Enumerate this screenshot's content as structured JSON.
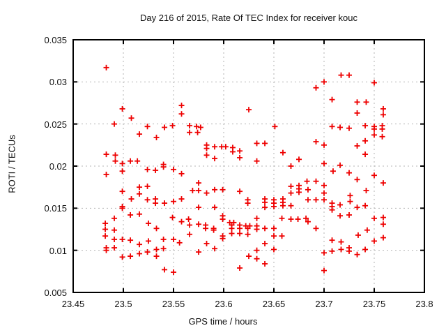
{
  "title": "Day 216 of 2015, Rate Of TEC Index for receiver kouc",
  "colors": {
    "marker": "#ee0000",
    "grid": "#b3b3b3",
    "axis": "#000000",
    "text": "#111111",
    "background": "#ffffff"
  },
  "chart_data": {
    "type": "scatter",
    "title": "Day 216 of 2015, Rate Of TEC Index for receiver kouc",
    "xlabel": "GPS time / hours",
    "ylabel": "ROTI / TECUs",
    "xlim": [
      23.45,
      23.8
    ],
    "ylim": [
      0.005,
      0.035
    ],
    "xticks": [
      23.45,
      23.5,
      23.55,
      23.6,
      23.65,
      23.7,
      23.75,
      23.8
    ],
    "xtick_labels": [
      "23.45",
      "23.5",
      "23.55",
      "23.6",
      "23.65",
      "23.7",
      "23.75",
      "23.8"
    ],
    "yticks": [
      0.005,
      0.01,
      0.015,
      0.02,
      0.025,
      0.03,
      0.035
    ],
    "ytick_labels": [
      "0.005",
      "0.01",
      "0.015",
      "0.02",
      "0.025",
      "0.03",
      "0.035"
    ],
    "grid": true,
    "legend": "none",
    "marker": "plus",
    "series": [
      {
        "name": "ROTI",
        "points": [
          [
            23.483,
            0.0317
          ],
          [
            23.499,
            0.0268
          ],
          [
            23.508,
            0.0257
          ],
          [
            23.558,
            0.0272
          ],
          [
            23.558,
            0.0262
          ],
          [
            23.625,
            0.0267
          ],
          [
            23.717,
            0.0308
          ],
          [
            23.725,
            0.0308
          ],
          [
            23.7,
            0.03
          ],
          [
            23.75,
            0.0299
          ],
          [
            23.692,
            0.0293
          ],
          [
            23.708,
            0.0279
          ],
          [
            23.733,
            0.0276
          ],
          [
            23.742,
            0.0276
          ],
          [
            23.733,
            0.0263
          ],
          [
            23.759,
            0.0268
          ],
          [
            23.759,
            0.0261
          ],
          [
            23.491,
            0.025
          ],
          [
            23.524,
            0.0247
          ],
          [
            23.541,
            0.0246
          ],
          [
            23.549,
            0.0248
          ],
          [
            23.566,
            0.0248
          ],
          [
            23.566,
            0.024
          ],
          [
            23.573,
            0.0247
          ],
          [
            23.577,
            0.0246
          ],
          [
            23.574,
            0.024
          ],
          [
            23.651,
            0.0247
          ],
          [
            23.708,
            0.0247
          ],
          [
            23.716,
            0.0246
          ],
          [
            23.725,
            0.0245
          ],
          [
            23.741,
            0.0248
          ],
          [
            23.75,
            0.0247
          ],
          [
            23.75,
            0.0244
          ],
          [
            23.758,
            0.0248
          ],
          [
            23.758,
            0.0244
          ],
          [
            23.75,
            0.0237
          ],
          [
            23.758,
            0.0235
          ],
          [
            23.516,
            0.0238
          ],
          [
            23.533,
            0.0234
          ],
          [
            23.483,
            0.0214
          ],
          [
            23.492,
            0.0213
          ],
          [
            23.492,
            0.0206
          ],
          [
            23.499,
            0.0203
          ],
          [
            23.507,
            0.0206
          ],
          [
            23.514,
            0.0206
          ],
          [
            23.499,
            0.0194
          ],
          [
            23.483,
            0.019
          ],
          [
            23.524,
            0.0196
          ],
          [
            23.532,
            0.0195
          ],
          [
            23.54,
            0.0202
          ],
          [
            23.54,
            0.0199
          ],
          [
            23.55,
            0.0196
          ],
          [
            23.558,
            0.0191
          ],
          [
            23.516,
            0.0175
          ],
          [
            23.524,
            0.0176
          ],
          [
            23.499,
            0.017
          ],
          [
            23.516,
            0.0167
          ],
          [
            23.508,
            0.0161
          ],
          [
            23.524,
            0.016
          ],
          [
            23.532,
            0.0161
          ],
          [
            23.532,
            0.0156
          ],
          [
            23.541,
            0.0156
          ],
          [
            23.55,
            0.0158
          ],
          [
            23.558,
            0.0161
          ],
          [
            23.499,
            0.0152
          ],
          [
            23.583,
            0.0225
          ],
          [
            23.583,
            0.0221
          ],
          [
            23.591,
            0.0223
          ],
          [
            23.598,
            0.0223
          ],
          [
            23.602,
            0.0223
          ],
          [
            23.609,
            0.0222
          ],
          [
            23.609,
            0.0217
          ],
          [
            23.616,
            0.0218
          ],
          [
            23.616,
            0.021
          ],
          [
            23.583,
            0.0213
          ],
          [
            23.591,
            0.0209
          ],
          [
            23.633,
            0.0227
          ],
          [
            23.641,
            0.0227
          ],
          [
            23.633,
            0.0206
          ],
          [
            23.659,
            0.0216
          ],
          [
            23.675,
            0.0208
          ],
          [
            23.667,
            0.02
          ],
          [
            23.575,
            0.018
          ],
          [
            23.569,
            0.0171
          ],
          [
            23.575,
            0.0171
          ],
          [
            23.583,
            0.0168
          ],
          [
            23.591,
            0.0172
          ],
          [
            23.599,
            0.0172
          ],
          [
            23.616,
            0.017
          ],
          [
            23.624,
            0.016
          ],
          [
            23.624,
            0.0156
          ],
          [
            23.641,
            0.0161
          ],
          [
            23.641,
            0.0157
          ],
          [
            23.641,
            0.0151
          ],
          [
            23.65,
            0.016
          ],
          [
            23.65,
            0.0156
          ],
          [
            23.65,
            0.0152
          ],
          [
            23.659,
            0.0161
          ],
          [
            23.659,
            0.0157
          ],
          [
            23.659,
            0.0153
          ],
          [
            23.667,
            0.0176
          ],
          [
            23.667,
            0.0168
          ],
          [
            23.675,
            0.0177
          ],
          [
            23.675,
            0.0173
          ],
          [
            23.675,
            0.0169
          ],
          [
            23.683,
            0.0182
          ],
          [
            23.667,
            0.0153
          ],
          [
            23.575,
            0.0151
          ],
          [
            23.591,
            0.0151
          ],
          [
            23.692,
            0.0229
          ],
          [
            23.7,
            0.0225
          ],
          [
            23.733,
            0.0224
          ],
          [
            23.741,
            0.023
          ],
          [
            23.741,
            0.0214
          ],
          [
            23.7,
            0.0203
          ],
          [
            23.716,
            0.0201
          ],
          [
            23.709,
            0.0194
          ],
          [
            23.725,
            0.0192
          ],
          [
            23.75,
            0.0189
          ],
          [
            23.733,
            0.0184
          ],
          [
            23.692,
            0.0182
          ],
          [
            23.759,
            0.018
          ],
          [
            23.7,
            0.0177
          ],
          [
            23.684,
            0.0172
          ],
          [
            23.7,
            0.0168
          ],
          [
            23.742,
            0.0171
          ],
          [
            23.7,
            0.016
          ],
          [
            23.692,
            0.016
          ],
          [
            23.684,
            0.016
          ],
          [
            23.726,
            0.0165
          ],
          [
            23.726,
            0.0158
          ],
          [
            23.708,
            0.0156
          ],
          [
            23.708,
            0.0152
          ],
          [
            23.716,
            0.0154
          ],
          [
            23.733,
            0.0151
          ],
          [
            23.741,
            0.0153
          ],
          [
            23.499,
            0.015
          ],
          [
            23.507,
            0.0142
          ],
          [
            23.516,
            0.0143
          ],
          [
            23.491,
            0.0138
          ],
          [
            23.482,
            0.0132
          ],
          [
            23.482,
            0.0125
          ],
          [
            23.491,
            0.0124
          ],
          [
            23.525,
            0.0132
          ],
          [
            23.533,
            0.0126
          ],
          [
            23.549,
            0.0139
          ],
          [
            23.558,
            0.0134
          ],
          [
            23.482,
            0.0117
          ],
          [
            23.491,
            0.0113
          ],
          [
            23.499,
            0.0113
          ],
          [
            23.507,
            0.0112
          ],
          [
            23.516,
            0.0107
          ],
          [
            23.525,
            0.0111
          ],
          [
            23.54,
            0.0113
          ],
          [
            23.55,
            0.0113
          ],
          [
            23.556,
            0.0109
          ],
          [
            23.483,
            0.0103
          ],
          [
            23.491,
            0.0103
          ],
          [
            23.483,
            0.01
          ],
          [
            23.499,
            0.0092
          ],
          [
            23.507,
            0.0093
          ],
          [
            23.516,
            0.0096
          ],
          [
            23.524,
            0.0098
          ],
          [
            23.533,
            0.0101
          ],
          [
            23.533,
            0.0093
          ],
          [
            23.54,
            0.0102
          ],
          [
            23.541,
            0.0077
          ],
          [
            23.55,
            0.0074
          ],
          [
            23.565,
            0.0137
          ],
          [
            23.566,
            0.013
          ],
          [
            23.566,
            0.0119
          ],
          [
            23.575,
            0.0131
          ],
          [
            23.582,
            0.013
          ],
          [
            23.582,
            0.0126
          ],
          [
            23.59,
            0.0126
          ],
          [
            23.59,
            0.0124
          ],
          [
            23.599,
            0.0141
          ],
          [
            23.599,
            0.0137
          ],
          [
            23.599,
            0.0117
          ],
          [
            23.599,
            0.0114
          ],
          [
            23.606,
            0.0133
          ],
          [
            23.61,
            0.0133
          ],
          [
            23.608,
            0.013
          ],
          [
            23.608,
            0.0126
          ],
          [
            23.608,
            0.012
          ],
          [
            23.616,
            0.013
          ],
          [
            23.616,
            0.0126
          ],
          [
            23.616,
            0.012
          ],
          [
            23.622,
            0.0129
          ],
          [
            23.626,
            0.0129
          ],
          [
            23.624,
            0.0126
          ],
          [
            23.624,
            0.0119
          ],
          [
            23.633,
            0.0138
          ],
          [
            23.633,
            0.0129
          ],
          [
            23.633,
            0.0125
          ],
          [
            23.641,
            0.0126
          ],
          [
            23.641,
            0.0108
          ],
          [
            23.65,
            0.0126
          ],
          [
            23.65,
            0.0117
          ],
          [
            23.65,
            0.0101
          ],
          [
            23.658,
            0.0138
          ],
          [
            23.658,
            0.0117
          ],
          [
            23.667,
            0.0137
          ],
          [
            23.674,
            0.0137
          ],
          [
            23.682,
            0.0138
          ],
          [
            23.575,
            0.0098
          ],
          [
            23.583,
            0.0108
          ],
          [
            23.591,
            0.0102
          ],
          [
            23.633,
            0.01
          ],
          [
            23.625,
            0.0093
          ],
          [
            23.633,
            0.009
          ],
          [
            23.641,
            0.0084
          ],
          [
            23.616,
            0.0079
          ],
          [
            23.684,
            0.0134
          ],
          [
            23.692,
            0.0126
          ],
          [
            23.708,
            0.0148
          ],
          [
            23.716,
            0.0141
          ],
          [
            23.725,
            0.0142
          ],
          [
            23.75,
            0.0138
          ],
          [
            23.759,
            0.0139
          ],
          [
            23.759,
            0.0131
          ],
          [
            23.743,
            0.0124
          ],
          [
            23.734,
            0.0118
          ],
          [
            23.75,
            0.0111
          ],
          [
            23.759,
            0.0115
          ],
          [
            23.708,
            0.0112
          ],
          [
            23.717,
            0.011
          ],
          [
            23.7,
            0.0097
          ],
          [
            23.708,
            0.0099
          ],
          [
            23.717,
            0.0101
          ],
          [
            23.725,
            0.0103
          ],
          [
            23.725,
            0.0099
          ],
          [
            23.733,
            0.0095
          ],
          [
            23.741,
            0.0101
          ],
          [
            23.7,
            0.0076
          ]
        ]
      }
    ]
  }
}
